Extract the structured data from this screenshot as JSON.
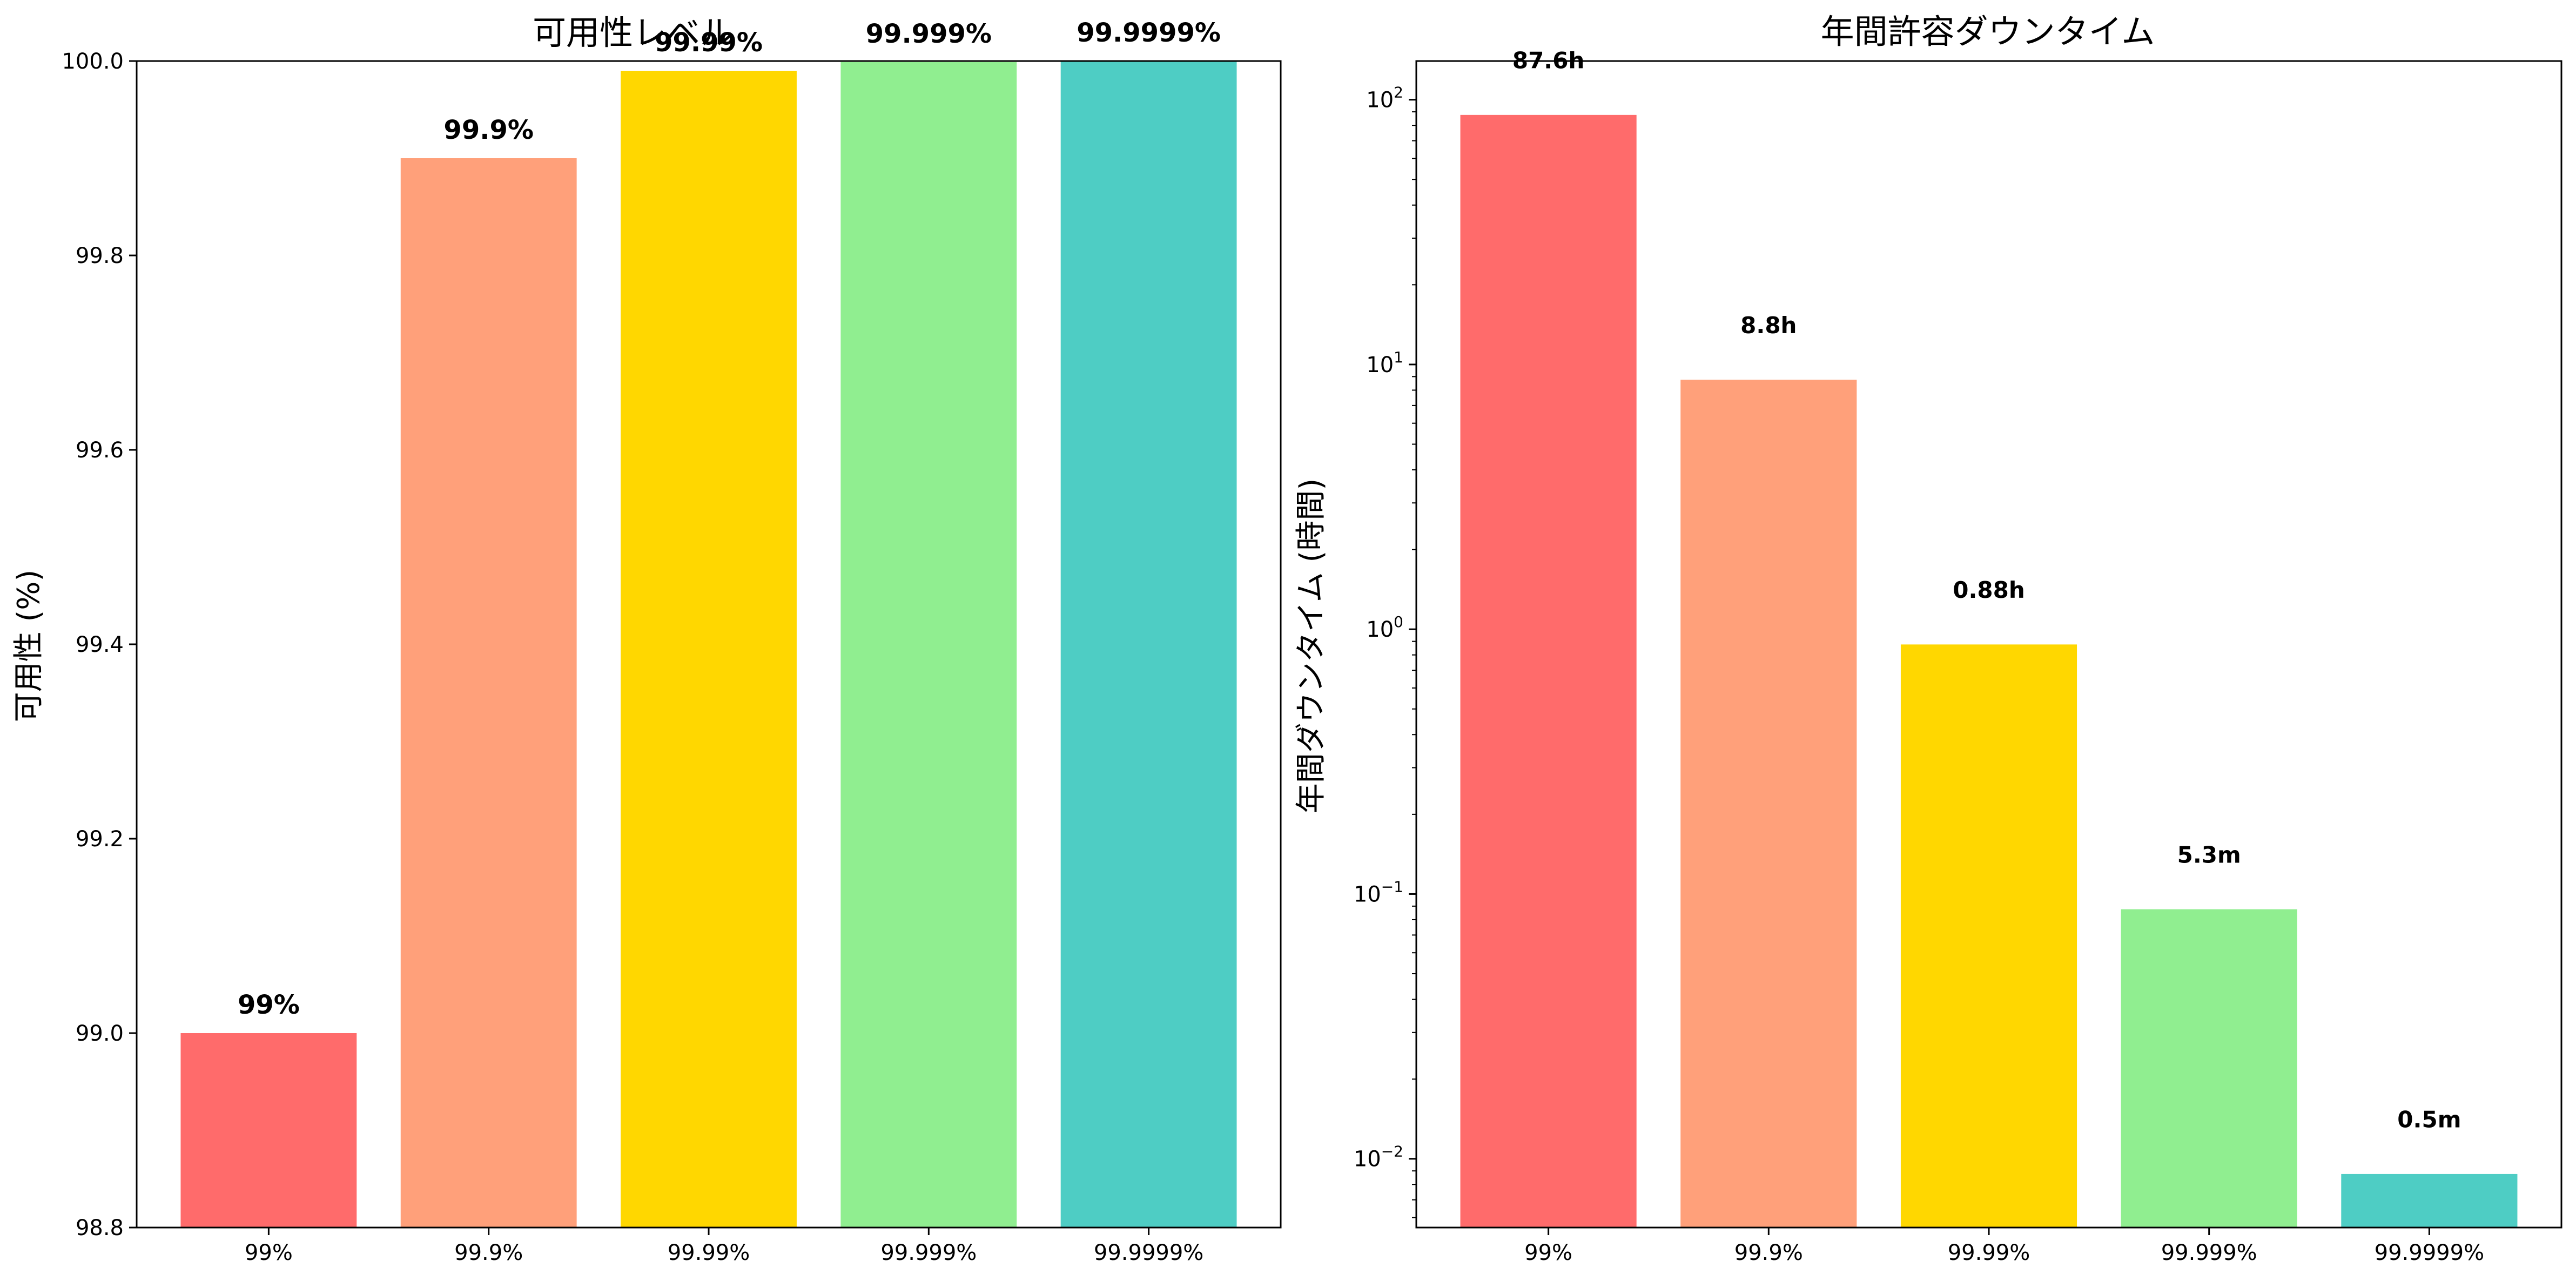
{
  "chart_data": [
    {
      "type": "bar",
      "title": "可用性レベル",
      "xlabel": "",
      "ylabel": "可用性 (%)",
      "categories": [
        "99%",
        "99.9%",
        "99.99%",
        "99.999%",
        "99.9999%"
      ],
      "values": [
        99.0,
        99.9,
        99.99,
        99.999,
        99.9999
      ],
      "data_labels": [
        "99%",
        "99.9%",
        "99.99%",
        "99.999%",
        "99.9999%"
      ],
      "colors": [
        "#FF6B6B",
        "#FFA07A",
        "#FFD700",
        "#90EE90",
        "#4ECDC4"
      ],
      "ylim": [
        98.8,
        100.0
      ],
      "yticks": [
        98.8,
        99.0,
        99.2,
        99.4,
        99.6,
        99.8,
        100.0
      ],
      "ytick_labels": [
        "98.8",
        "99.0",
        "99.2",
        "99.4",
        "99.6",
        "99.8",
        "100.0"
      ],
      "grid": false,
      "legend": "none"
    },
    {
      "type": "bar",
      "title": "年間許容ダウンタイム",
      "xlabel": "",
      "ylabel": "年間ダウンタイム (時間)",
      "yscale": "log",
      "categories": [
        "99%",
        "99.9%",
        "99.99%",
        "99.999%",
        "99.9999%"
      ],
      "values": [
        87.6,
        8.76,
        0.876,
        0.0876,
        0.00876
      ],
      "data_labels": [
        "87.6h",
        "8.8h",
        "0.88h",
        "5.3m",
        "0.5m"
      ],
      "colors": [
        "#FF6B6B",
        "#FFA07A",
        "#FFD700",
        "#90EE90",
        "#4ECDC4"
      ],
      "ylim": [
        0.0055,
        140
      ],
      "yticks": [
        0.01,
        0.1,
        1,
        10,
        100
      ],
      "ytick_labels": [
        {
          "base": "10",
          "exp": "−2"
        },
        {
          "base": "10",
          "exp": "−1"
        },
        {
          "base": "10",
          "exp": "0"
        },
        {
          "base": "10",
          "exp": "1"
        },
        {
          "base": "10",
          "exp": "2"
        }
      ],
      "grid": false,
      "legend": "none"
    }
  ]
}
